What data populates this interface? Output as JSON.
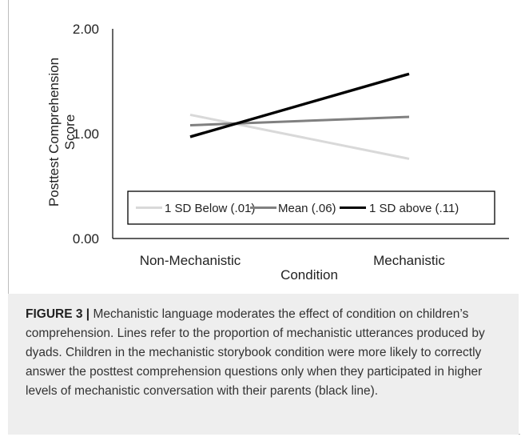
{
  "chart_data": {
    "type": "line",
    "categories": [
      "Non-Mechanistic",
      "Mechanistic"
    ],
    "xlabel": "Condition",
    "ylabel": "Posttest Comprehension Score",
    "ylabel_lines": [
      "Posttest Comprehension",
      "Score"
    ],
    "ylim": [
      0,
      2
    ],
    "yticks": [
      "0.00",
      "1.00",
      "2.00"
    ],
    "grid": false,
    "legend": "inside-bottom",
    "series": [
      {
        "name": "1 SD Below (.01)",
        "values": [
          1.18,
          0.76
        ],
        "color": "#d9d9d9"
      },
      {
        "name": "Mean (.06)",
        "values": [
          1.08,
          1.16
        ],
        "color": "#808080"
      },
      {
        "name": "1 SD above (.11)",
        "values": [
          0.97,
          1.57
        ],
        "color": "#000000"
      }
    ]
  },
  "caption": {
    "label": "FIGURE 3 |",
    "text": " Mechanistic language moderates the effect of condition on children’s comprehension. Lines refer to the proportion of mechanistic utterances produced by dyads. Children in the mechanistic storybook condition were more likely to correctly answer the posttest comprehension questions only when they participated in higher levels of mechanistic conversation with their parents (black line)."
  }
}
